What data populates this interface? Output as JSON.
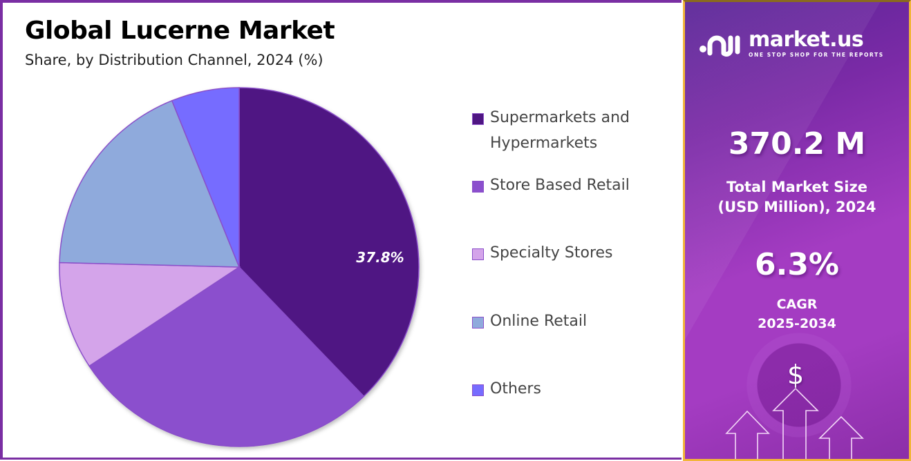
{
  "header": {
    "title": "Global Lucerne Market",
    "subtitle": "Share, by Distribution Channel, 2024 (%)"
  },
  "chart_data": {
    "type": "pie",
    "title": "Global Lucerne Market",
    "subtitle": "Share, by Distribution Channel, 2024 (%)",
    "categories": [
      "Supermarkets and Hypermarkets",
      "Store Based Retail",
      "Specialty Stores",
      "Online Retail",
      "Others"
    ],
    "values": [
      37.8,
      27.9,
      9.7,
      18.5,
      6.1
    ],
    "colors": [
      "#4f1683",
      "#8b4fcd",
      "#d4a4ea",
      "#8faadc",
      "#766cff"
    ],
    "data_labels": [
      "37.8%",
      "",
      "",
      "",
      ""
    ],
    "start_angle_deg": 0,
    "direction": "clockwise",
    "legend_position": "right"
  },
  "legend": {
    "items": [
      {
        "label_line1": "Supermarkets and",
        "label_line2": "Hypermarkets",
        "color": "#4f1683"
      },
      {
        "label_line1": "Store Based Retail",
        "label_line2": "",
        "color": "#8b4fcd"
      },
      {
        "label_line1": "Specialty Stores",
        "label_line2": "",
        "color": "#d4a4ea"
      },
      {
        "label_line1": "Online Retail",
        "label_line2": "",
        "color": "#8faadc"
      },
      {
        "label_line1": "Others",
        "label_line2": "",
        "color": "#766cff"
      }
    ]
  },
  "sidebar": {
    "brand": {
      "name": "market.us",
      "tagline": "ONE STOP SHOP FOR THE REPORTS"
    },
    "market_size": {
      "value": "370.2 M",
      "label_line1": "Total Market Size",
      "label_line2": "(USD Million), 2024"
    },
    "cagr": {
      "value": "6.3%",
      "label_line1": "CAGR",
      "label_line2": "2025-2034"
    },
    "decor_icon": "dollar-sign"
  },
  "colors": {
    "frame_border": "#7a2ea3",
    "sidebar_border": "#f2b53a",
    "sidebar_gradient_start": "#5a2597",
    "sidebar_gradient_end": "#a43cc2"
  }
}
